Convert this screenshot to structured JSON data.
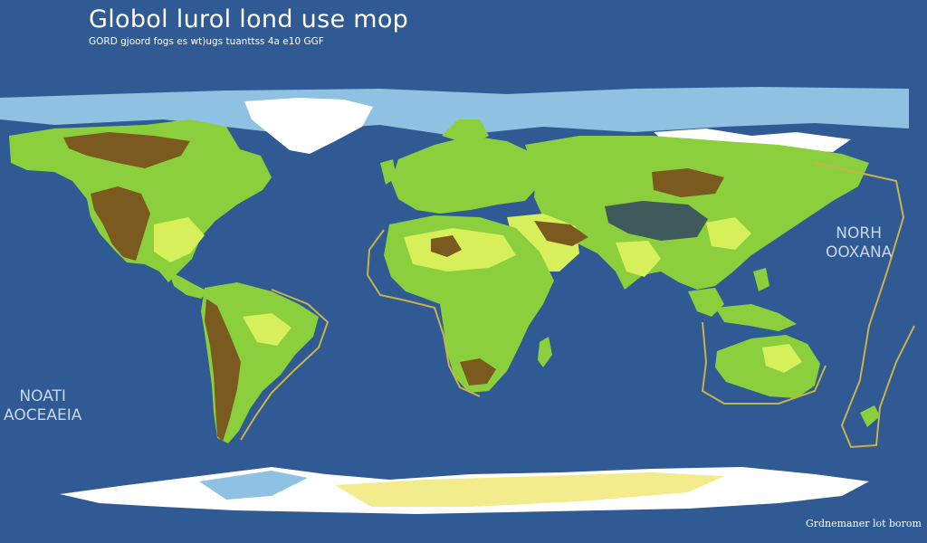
{
  "title": "Globol lurol lond use mop",
  "subtitle": "GORD gjoord fogs es wt)ugs tuanttss 4a e10 GGF",
  "labels": {
    "east_ocean": {
      "line1": "NORH",
      "line2": "OOXANA"
    },
    "west_ocean": {
      "line1": "NOATI",
      "line2": "AOCEAEIA"
    }
  },
  "credit": "Grdnemaner lot borom",
  "colors": {
    "ocean": "#2f5a93",
    "ice": "#ffffff",
    "light_ice": "#8fc1e3",
    "grassland": "#8ccf3c",
    "cropland": "#d6ef5a",
    "mountain": "#7a5a1f",
    "coast_line": "#c8b24a",
    "sand": "#f2ec8c"
  }
}
